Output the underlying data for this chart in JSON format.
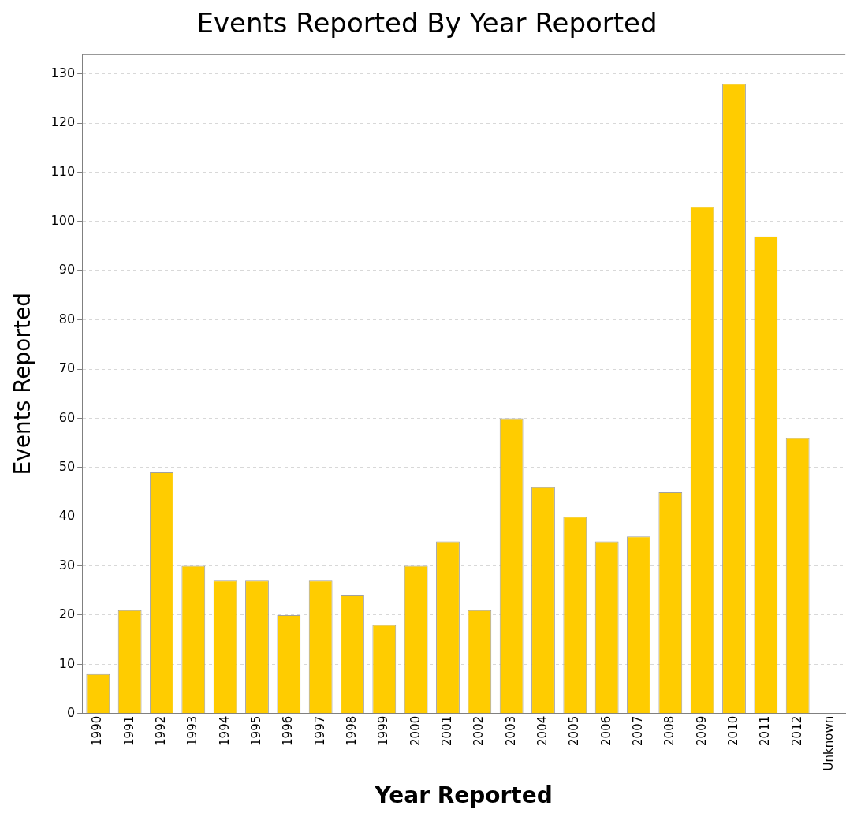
{
  "chart_data": {
    "type": "bar",
    "title": "Events Reported By Year Reported",
    "xlabel": "Year Reported",
    "ylabel": "Events Reported",
    "categories": [
      "1990",
      "1991",
      "1992",
      "1993",
      "1994",
      "1995",
      "1996",
      "1997",
      "1998",
      "1999",
      "2000",
      "2001",
      "2002",
      "2003",
      "2004",
      "2005",
      "2006",
      "2007",
      "2008",
      "2009",
      "2010",
      "2011",
      "2012",
      "Unknown"
    ],
    "values": [
      8,
      21,
      49,
      30,
      27,
      27,
      20,
      27,
      24,
      18,
      30,
      35,
      21,
      60,
      46,
      40,
      35,
      36,
      45,
      103,
      128,
      97,
      56,
      0
    ],
    "color": "#ffcc00",
    "ylim": [
      0,
      134
    ],
    "yticks": [
      0,
      10,
      20,
      30,
      40,
      50,
      60,
      70,
      80,
      90,
      100,
      110,
      120,
      130
    ],
    "grid": "y"
  }
}
